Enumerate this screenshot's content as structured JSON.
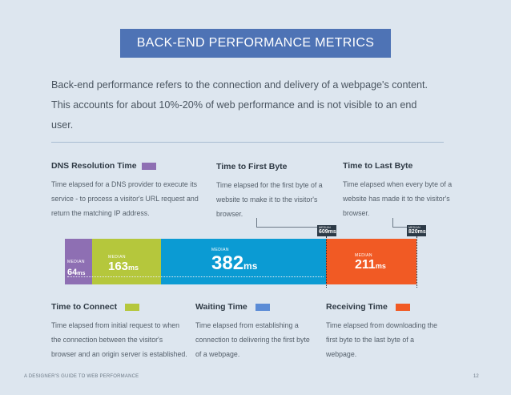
{
  "title": "BACK-END PERFORMANCE METRICS",
  "intro": "Back-end performance refers to the connection and delivery of a webpage's content. This accounts for about 10%-20% of web performance and is not visible to an end user.",
  "colors": {
    "banner": "#4e73b5",
    "dns": "#8e6fb3",
    "connect": "#b5c73c",
    "waiting": "#0b9bd3",
    "receiving": "#f15a24",
    "marker": "#2c3a47"
  },
  "top_blocks": [
    {
      "title": "DNS Resolution Time",
      "desc": "Time elapsed for a DNS provider to execute its service - to process a visitor's URL request and return the matching IP address."
    },
    {
      "title": "Time to First Byte",
      "desc": "Time elapsed for the first byte of a website to make it to the visitor's browser."
    },
    {
      "title": "Time to Last Byte",
      "desc": "Time elapsed when every byte of a website has made it to the visitor's browser."
    }
  ],
  "bottom_blocks": [
    {
      "title": "Time to Connect",
      "desc": "Time elapsed from initial request to when the connection between the visitor's browser and an origin server is established."
    },
    {
      "title": "Waiting Time",
      "desc": "Time elapsed from establishing a connection to delivering the first byte of a webpage."
    },
    {
      "title": "Receiving Time",
      "desc": "Time elapsed from downloading the first byte to the last byte of a webpage."
    }
  ],
  "segments": [
    {
      "median_label": "MEDIAN",
      "value": "64",
      "unit": "ms"
    },
    {
      "median_label": "MEDIAN",
      "value": "163",
      "unit": "ms"
    },
    {
      "median_label": "MEDIAN",
      "value": "382",
      "unit": "ms"
    },
    {
      "median_label": "MEDIAN",
      "value": "211",
      "unit": "ms"
    }
  ],
  "markers": [
    {
      "median_label": "MEDIAN",
      "value": "609ms"
    },
    {
      "median_label": "MEDIAN",
      "value": "820ms"
    }
  ],
  "footer": {
    "left": "A DESIGNER'S GUIDE TO WEB PERFORMANCE",
    "page": "12"
  }
}
